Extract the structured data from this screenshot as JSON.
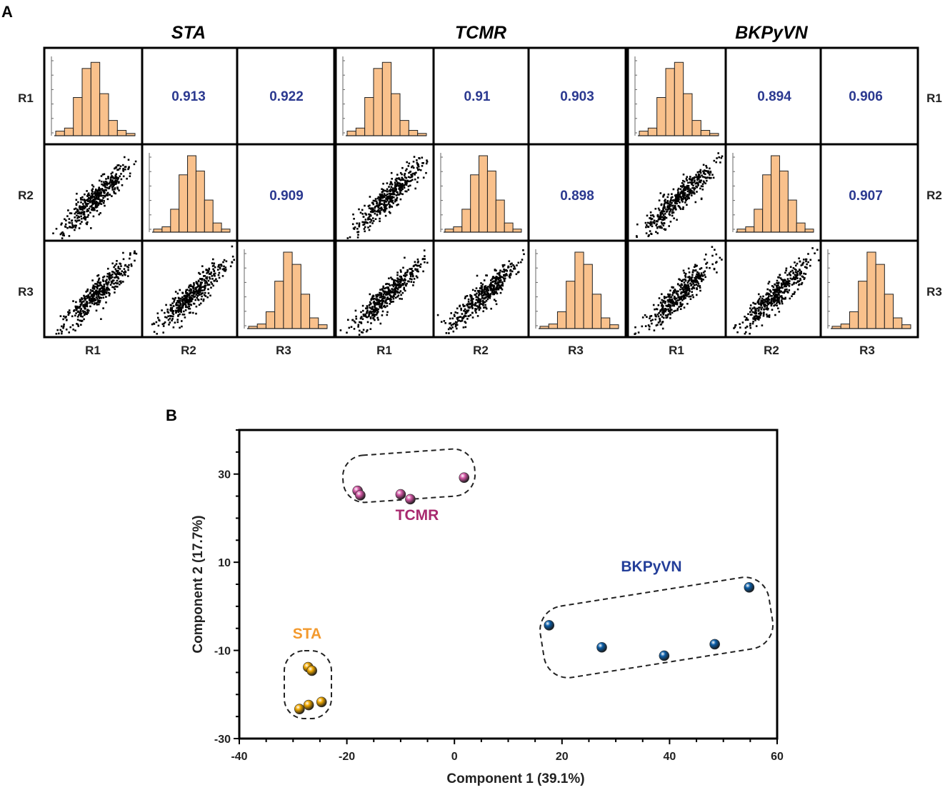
{
  "colors": {
    "histogram_fill": "#F9C18C",
    "correlation_text": "#2B3990",
    "tcmr": "#D458A6",
    "sta": "#F0A800",
    "bkpyvn": "#0B5EA8",
    "tcmr_label": "#A8296E",
    "sta_label": "#F39A2E",
    "bkpyvn_label": "#233E99"
  },
  "panel_a": {
    "letter": "A",
    "replicate_labels": [
      "R1",
      "R2",
      "R3"
    ],
    "histogram_heights": [
      [
        0.06,
        0.1,
        0.5,
        0.88,
        0.96,
        0.55,
        0.2,
        0.07,
        0.03
      ],
      [
        0.04,
        0.07,
        0.3,
        0.75,
        1.0,
        0.8,
        0.42,
        0.12,
        0.04
      ],
      [
        0.03,
        0.06,
        0.22,
        0.62,
        1.0,
        0.84,
        0.45,
        0.14,
        0.05
      ]
    ],
    "groups": [
      {
        "name": "STA",
        "correlations": {
          "r1_r2": "0.913",
          "r1_r3": "0.922",
          "r2_r3": "0.909"
        }
      },
      {
        "name": "TCMR",
        "correlations": {
          "r1_r2": "0.91",
          "r1_r3": "0.903",
          "r2_r3": "0.898"
        }
      },
      {
        "name": "BKPyVN",
        "correlations": {
          "r1_r2": "0.894",
          "r1_r3": "0.906",
          "r2_r3": "0.907"
        }
      }
    ]
  },
  "chart_data": {
    "type": "scatter",
    "panel_letter": "B",
    "xlabel": "Component 1 (39.1%)",
    "ylabel": "Component 2 (17.7%)",
    "xlim": [
      -40,
      60
    ],
    "ylim": [
      -30,
      40
    ],
    "xticks": [
      -40,
      -20,
      0,
      20,
      40,
      60
    ],
    "yticks": [
      -30,
      -10,
      10,
      30
    ],
    "series": [
      {
        "name": "TCMR",
        "color_key": "tcmr",
        "points": [
          [
            -18,
            26.2
          ],
          [
            -17.5,
            25.2
          ],
          [
            -10,
            25.4
          ],
          [
            -8.2,
            24.3
          ],
          [
            1.8,
            29.2
          ]
        ]
      },
      {
        "name": "STA",
        "color_key": "sta",
        "points": [
          [
            -27.2,
            -13.8
          ],
          [
            -26.5,
            -14.6
          ],
          [
            -24.7,
            -21.7
          ],
          [
            -27.1,
            -22.4
          ],
          [
            -28.8,
            -23.3
          ]
        ]
      },
      {
        "name": "BKPyVN",
        "color_key": "bkpyvn",
        "points": [
          [
            17.6,
            -4.3
          ],
          [
            27.4,
            -9.3
          ],
          [
            39,
            -11.2
          ],
          [
            48.4,
            -8.6
          ],
          [
            54.8,
            4.3
          ]
        ]
      }
    ]
  }
}
